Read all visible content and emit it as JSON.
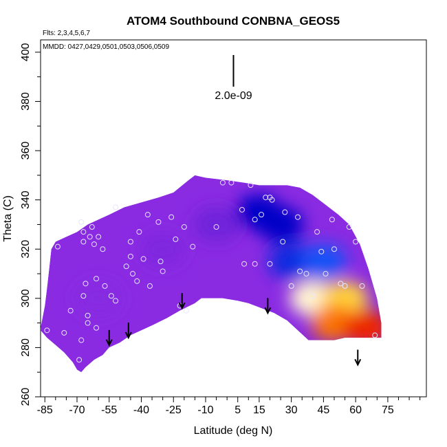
{
  "chart_data": {
    "type": "heatmap",
    "title": "ATOM4 Southbound CONBNA_GEOS5",
    "annotations": {
      "flights": "Flts: 2,3,4,5,6,7",
      "dates": "MMDD: 0427,0429,0501,0503,0506,0509",
      "scale_label": "2.0e-09"
    },
    "xlabel": "Latitude (deg N)",
    "ylabel": "Theta (C)",
    "xlim": [
      -87,
      93
    ],
    "ylim": [
      260,
      405
    ],
    "x_ticks": [
      -85,
      -70,
      -55,
      -40,
      -25,
      -10,
      5,
      15,
      30,
      45,
      60,
      75
    ],
    "x_minor_step": 5,
    "y_ticks": [
      260,
      280,
      300,
      320,
      340,
      360,
      380,
      400
    ],
    "colors": {
      "low": "#8a2be2",
      "mid_blue": "#0000c8",
      "light_blue": "#5ab4ff",
      "pale": "#ffffff",
      "yellow": "#ffd23c",
      "orange": "#ff8c00",
      "red": "#e60000"
    },
    "domain_bottom": [
      [
        -87,
        287
      ],
      [
        -84,
        284
      ],
      [
        -80,
        281
      ],
      [
        -76,
        278
      ],
      [
        -72,
        274
      ],
      [
        -70,
        271
      ],
      [
        -68,
        270
      ],
      [
        -66,
        272
      ],
      [
        -62,
        275
      ],
      [
        -58,
        277
      ],
      [
        -55,
        280
      ],
      [
        -50,
        282
      ],
      [
        -45,
        285
      ],
      [
        -40,
        287
      ],
      [
        -35,
        289
      ],
      [
        -28,
        292
      ],
      [
        -22,
        295
      ],
      [
        -15,
        298
      ],
      [
        -12,
        300
      ],
      [
        -8,
        300
      ],
      [
        -2,
        300
      ],
      [
        5,
        299
      ],
      [
        10,
        298
      ],
      [
        16,
        296
      ],
      [
        22,
        294
      ],
      [
        28,
        291
      ],
      [
        33,
        287
      ],
      [
        38,
        283
      ],
      [
        42,
        283
      ],
      [
        50,
        283
      ],
      [
        55,
        284
      ],
      [
        62,
        284
      ],
      [
        68,
        284
      ],
      [
        72,
        284
      ]
    ],
    "domain_top": [
      [
        -87,
        288
      ],
      [
        -85,
        297
      ],
      [
        -84,
        304
      ],
      [
        -83,
        312
      ],
      [
        -82,
        320
      ],
      [
        -80,
        323
      ],
      [
        -75,
        325
      ],
      [
        -70,
        327
      ],
      [
        -65,
        330
      ],
      [
        -60,
        332
      ],
      [
        -55,
        334
      ],
      [
        -48,
        337
      ],
      [
        -40,
        339
      ],
      [
        -32,
        341
      ],
      [
        -25,
        343
      ],
      [
        -18,
        348
      ],
      [
        -15,
        350
      ],
      [
        -10,
        349
      ],
      [
        0,
        348
      ],
      [
        8,
        347
      ],
      [
        15,
        346
      ],
      [
        22,
        346
      ],
      [
        28,
        346
      ],
      [
        34,
        345
      ],
      [
        40,
        342
      ],
      [
        46,
        338
      ],
      [
        52,
        334
      ],
      [
        57,
        330
      ],
      [
        62,
        322
      ],
      [
        66,
        312
      ],
      [
        70,
        300
      ],
      [
        72,
        290
      ],
      [
        72,
        284
      ]
    ],
    "field_cells": [
      {
        "x": -60,
        "y": 300,
        "v": 0.02
      },
      {
        "x": -30,
        "y": 320,
        "v": 0.05
      },
      {
        "x": -5,
        "y": 330,
        "v": 0.12
      },
      {
        "x": 15,
        "y": 335,
        "v": 0.3
      },
      {
        "x": 25,
        "y": 330,
        "v": 0.3
      },
      {
        "x": 30,
        "y": 315,
        "v": 0.35
      },
      {
        "x": 45,
        "y": 315,
        "v": 0.4
      },
      {
        "x": 40,
        "y": 300,
        "v": 0.6
      },
      {
        "x": 55,
        "y": 300,
        "v": 0.7
      },
      {
        "x": 50,
        "y": 290,
        "v": 0.85
      },
      {
        "x": 65,
        "y": 288,
        "v": 0.95
      }
    ],
    "sample_points": [
      [
        -79,
        321
      ],
      [
        -84,
        287
      ],
      [
        -76,
        286
      ],
      [
        -73,
        295
      ],
      [
        -68,
        331
      ],
      [
        -67,
        327
      ],
      [
        -67,
        323
      ],
      [
        -63,
        329
      ],
      [
        -64,
        325
      ],
      [
        -62,
        322
      ],
      [
        -60,
        325
      ],
      [
        -58,
        320
      ],
      [
        -61,
        308
      ],
      [
        -66,
        306
      ],
      [
        -67,
        301
      ],
      [
        -65,
        293
      ],
      [
        -65,
        290
      ],
      [
        -61,
        288
      ],
      [
        -68,
        283
      ],
      [
        -69,
        275
      ],
      [
        -57,
        305
      ],
      [
        -54,
        301
      ],
      [
        -52,
        299
      ],
      [
        -52,
        337
      ],
      [
        -45,
        323
      ],
      [
        -41,
        327
      ],
      [
        -39,
        316
      ],
      [
        -37,
        334
      ],
      [
        -32,
        331
      ],
      [
        -31,
        315
      ],
      [
        -30,
        311
      ],
      [
        -45,
        317
      ],
      [
        -47,
        313
      ],
      [
        -44,
        310
      ],
      [
        -42,
        307
      ],
      [
        -36,
        305
      ],
      [
        -26,
        333
      ],
      [
        -24,
        324
      ],
      [
        -20,
        329
      ],
      [
        -16,
        321
      ],
      [
        -22,
        297
      ],
      [
        -19,
        295
      ],
      [
        -2,
        347
      ],
      [
        2,
        347
      ],
      [
        -5,
        329
      ],
      [
        7,
        336
      ],
      [
        8,
        314
      ],
      [
        11,
        346
      ],
      [
        13,
        332
      ],
      [
        18,
        341
      ],
      [
        20,
        341
      ],
      [
        21,
        340
      ],
      [
        16,
        334
      ],
      [
        13,
        314
      ],
      [
        20,
        314
      ],
      [
        26,
        323
      ],
      [
        27,
        335
      ],
      [
        30,
        305
      ],
      [
        33,
        333
      ],
      [
        34,
        311
      ],
      [
        37,
        310
      ],
      [
        40,
        301
      ],
      [
        42,
        327
      ],
      [
        44,
        319
      ],
      [
        46,
        310
      ],
      [
        49,
        332
      ],
      [
        50,
        320
      ],
      [
        53,
        306
      ],
      [
        55,
        305
      ],
      [
        57,
        329
      ],
      [
        60,
        323
      ],
      [
        63,
        305
      ],
      [
        69,
        285
      ]
    ],
    "arrow_latitudes": [
      -55,
      -46,
      -21,
      19,
      61
    ],
    "arrow_tips": [
      281,
      284,
      296,
      294,
      273
    ],
    "scale_bar_x": 3
  }
}
